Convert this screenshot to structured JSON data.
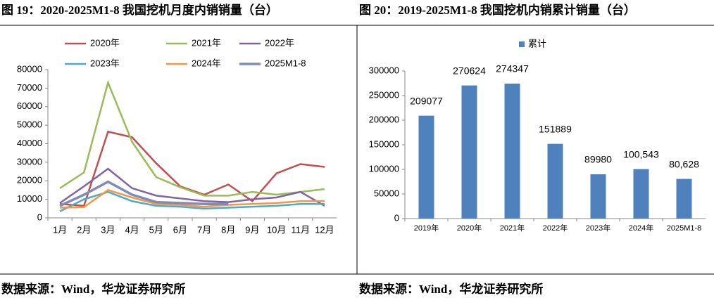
{
  "chart_data": [
    {
      "type": "line",
      "title": "图 19：2020-2025M1-8 我国挖机月度内销销量（台）",
      "source": "数据来源：Wind，华龙证券研究所",
      "categories": [
        "1月",
        "2月",
        "3月",
        "4月",
        "5月",
        "6月",
        "7月",
        "8月",
        "9月",
        "10月",
        "11月",
        "12月"
      ],
      "series": [
        {
          "name": "2020年",
          "color": "#c0504d",
          "values": [
            7500,
            6500,
            46500,
            43500,
            29500,
            17000,
            12500,
            18000,
            9000,
            24000,
            29000,
            27500
          ]
        },
        {
          "name": "2021年",
          "color": "#9bbb59",
          "values": [
            16000,
            24500,
            73000,
            41000,
            22000,
            16500,
            12000,
            12000,
            14000,
            12500,
            14000,
            15500
          ]
        },
        {
          "name": "2022年",
          "color": "#8064a2",
          "values": [
            8000,
            17000,
            26500,
            16000,
            12000,
            10500,
            9000,
            8500,
            10000,
            11000,
            14000,
            6500
          ]
        },
        {
          "name": "2023年",
          "color": "#4bacc6",
          "values": [
            3500,
            10000,
            14000,
            9000,
            6500,
            6000,
            5000,
            5500,
            6000,
            6500,
            7500,
            7500
          ]
        },
        {
          "name": "2024年",
          "color": "#f79646",
          "values": [
            5500,
            5800,
            15000,
            11000,
            7500,
            7000,
            6000,
            7000,
            7500,
            8000,
            9000,
            9000
          ]
        },
        {
          "name": "2025M1-8",
          "color": "#7f8cb5",
          "values": [
            6500,
            12500,
            19500,
            12500,
            8500,
            8000,
            7500,
            7500,
            null,
            null,
            null,
            null
          ]
        }
      ],
      "ylim": [
        0,
        80000
      ],
      "yticks": [
        0,
        10000,
        20000,
        30000,
        40000,
        50000,
        60000,
        70000,
        80000
      ],
      "grid": false
    },
    {
      "type": "bar",
      "title": "图 20：2019-2025M1-8 我国挖机内销累计销量（台）",
      "source": "数据来源：Wind，华龙证券研究所",
      "categories": [
        "2019年",
        "2020年",
        "2021年",
        "2022年",
        "2023年",
        "2024年",
        "2025M1-8"
      ],
      "series": [
        {
          "name": "累计",
          "color": "#4f81bd",
          "values": [
            209077,
            270624,
            274347,
            151889,
            89980,
            100543,
            80628
          ],
          "value_labels": [
            "209077",
            "270624",
            "274347",
            "151889",
            "89980",
            "100,543",
            "80,628"
          ]
        }
      ],
      "ylim": [
        0,
        300000
      ],
      "yticks": [
        0,
        50000,
        100000,
        150000,
        200000,
        250000,
        300000
      ],
      "grid": false
    }
  ]
}
